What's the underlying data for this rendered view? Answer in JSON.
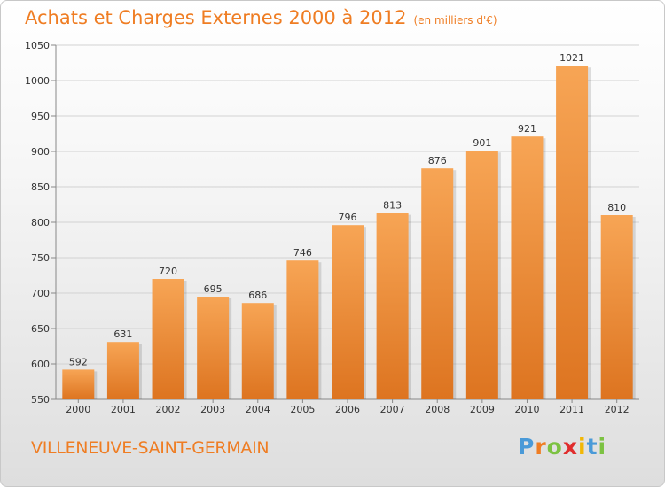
{
  "title": "Achats et Charges Externes 2000 à 2012",
  "subtitle": "(en milliers d'€)",
  "commune": "VILLENEUVE-SAINT-GERMAIN",
  "logo": {
    "letters": [
      "P",
      "r",
      "o",
      "x",
      "i",
      "t",
      "i"
    ],
    "colors": [
      "#4a9ad8",
      "#ef7d23",
      "#7cc242",
      "#e02d2d",
      "#f2b705",
      "#4a9ad8",
      "#7cc242"
    ]
  },
  "colors": {
    "accent": "#ef7d23",
    "bar_top": "#f7a555",
    "bar_bottom": "#dd7420"
  },
  "chart_data": {
    "type": "bar",
    "categories": [
      "2000",
      "2001",
      "2002",
      "2003",
      "2004",
      "2005",
      "2006",
      "2007",
      "2008",
      "2009",
      "2010",
      "2011",
      "2012"
    ],
    "values": [
      592,
      631,
      720,
      695,
      686,
      746,
      796,
      813,
      876,
      901,
      921,
      1021,
      810
    ],
    "ylim": [
      550,
      1050
    ],
    "yticks": [
      550,
      600,
      650,
      700,
      750,
      800,
      850,
      900,
      950,
      1000,
      1050
    ],
    "grid": true
  }
}
